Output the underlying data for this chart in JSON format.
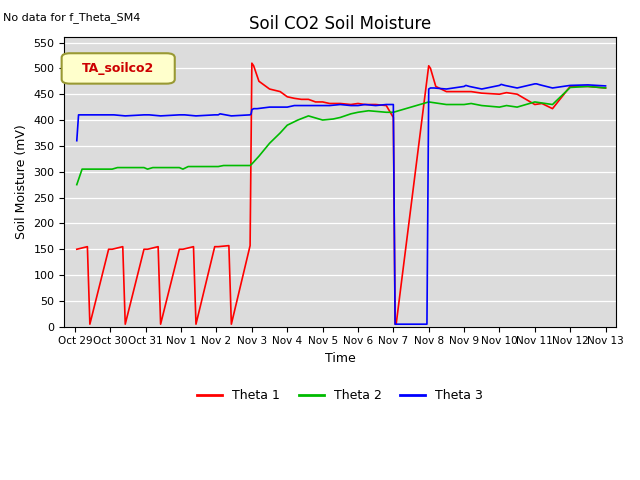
{
  "title": "Soil CO2 Soil Moisture",
  "no_data_text": "No data for f_Theta_SM4",
  "ylabel": "Soil Moisture (mV)",
  "xlabel": "Time",
  "legend_title": "TA_soilco2",
  "ylim": [
    0,
    560
  ],
  "yticks": [
    0,
    50,
    100,
    150,
    200,
    250,
    300,
    350,
    400,
    450,
    500,
    550
  ],
  "x_tick_labels": [
    "Oct 29",
    "Oct 30",
    "Oct 31",
    "Nov 1",
    "Nov 2",
    "Nov 3",
    "Nov 4",
    "Nov 5",
    "Nov 6",
    "Nov 7",
    "Nov 8",
    "Nov 9",
    "Nov 10",
    "Nov 11",
    "Nov 12",
    "Nov 13"
  ],
  "background_color": "#dcdcdc",
  "title_fontsize": 12,
  "axis_fontsize": 9,
  "legend_entries": [
    "Theta 1",
    "Theta 2",
    "Theta 3"
  ],
  "line_colors": [
    "#ff0000",
    "#00bb00",
    "#0000ff"
  ],
  "theta1_x": [
    0.05,
    0.35,
    0.42,
    0.95,
    1.05,
    1.35,
    1.42,
    1.95,
    2.05,
    2.35,
    2.42,
    2.95,
    3.05,
    3.35,
    3.42,
    3.95,
    4.05,
    4.35,
    4.42,
    4.95,
    5.0,
    5.05,
    5.2,
    5.5,
    5.8,
    6.0,
    6.2,
    6.4,
    6.6,
    6.8,
    7.0,
    7.2,
    7.5,
    7.8,
    8.0,
    8.2,
    8.5,
    8.8,
    9.0,
    9.05,
    9.08,
    10.0,
    10.05,
    10.2,
    10.5,
    11.0,
    11.2,
    11.5,
    12.0,
    12.2,
    12.5,
    13.0,
    13.2,
    13.5,
    14.0,
    14.5,
    15.0
  ],
  "theta1_y": [
    150,
    155,
    5,
    150,
    150,
    155,
    5,
    150,
    150,
    155,
    5,
    150,
    150,
    155,
    5,
    155,
    155,
    157,
    5,
    157,
    510,
    505,
    475,
    460,
    455,
    445,
    442,
    440,
    440,
    435,
    435,
    432,
    432,
    430,
    432,
    430,
    430,
    428,
    405,
    5,
    5,
    505,
    500,
    465,
    455,
    455,
    455,
    452,
    450,
    453,
    450,
    430,
    432,
    422,
    465,
    465,
    462
  ],
  "theta2_x": [
    0.05,
    0.2,
    0.95,
    1.05,
    1.2,
    1.95,
    2.05,
    2.2,
    2.95,
    3.05,
    3.2,
    3.95,
    4.05,
    4.2,
    4.95,
    5.0,
    5.2,
    5.5,
    5.8,
    6.0,
    6.3,
    6.6,
    7.0,
    7.3,
    7.5,
    7.8,
    8.0,
    8.3,
    8.8,
    9.0,
    10.0,
    10.2,
    10.5,
    11.0,
    11.2,
    11.5,
    12.0,
    12.2,
    12.5,
    13.0,
    13.2,
    13.5,
    14.0,
    14.5,
    15.0
  ],
  "theta2_y": [
    275,
    305,
    305,
    305,
    308,
    308,
    305,
    308,
    308,
    305,
    310,
    310,
    310,
    312,
    312,
    315,
    330,
    355,
    375,
    390,
    400,
    408,
    400,
    402,
    405,
    412,
    415,
    418,
    415,
    415,
    435,
    433,
    430,
    430,
    432,
    428,
    425,
    428,
    425,
    435,
    433,
    430,
    463,
    465,
    462
  ],
  "theta3_x": [
    0.05,
    0.1,
    0.42,
    0.95,
    1.05,
    1.1,
    1.42,
    1.95,
    2.05,
    2.1,
    2.42,
    2.95,
    3.05,
    3.1,
    3.42,
    3.95,
    4.05,
    4.1,
    4.42,
    4.95,
    4.98,
    5.0,
    5.05,
    5.15,
    5.5,
    5.8,
    6.0,
    6.2,
    6.4,
    6.6,
    6.8,
    7.0,
    7.2,
    7.5,
    7.8,
    8.0,
    8.2,
    8.5,
    8.8,
    9.0,
    9.05,
    9.08,
    9.9,
    9.95,
    10.0,
    10.05,
    10.15,
    10.5,
    11.0,
    11.05,
    11.15,
    11.5,
    12.0,
    12.05,
    12.15,
    12.5,
    13.0,
    13.05,
    13.15,
    13.5,
    14.0,
    14.5,
    15.0
  ],
  "theta3_y": [
    360,
    410,
    410,
    410,
    410,
    410,
    408,
    410,
    410,
    410,
    408,
    410,
    410,
    410,
    408,
    410,
    410,
    412,
    408,
    410,
    412,
    420,
    422,
    422,
    425,
    425,
    425,
    428,
    428,
    428,
    428,
    428,
    428,
    430,
    428,
    428,
    430,
    428,
    430,
    430,
    5,
    5,
    5,
    5,
    460,
    462,
    462,
    460,
    465,
    467,
    465,
    460,
    467,
    469,
    467,
    462,
    470,
    470,
    468,
    462,
    467,
    468,
    466
  ]
}
